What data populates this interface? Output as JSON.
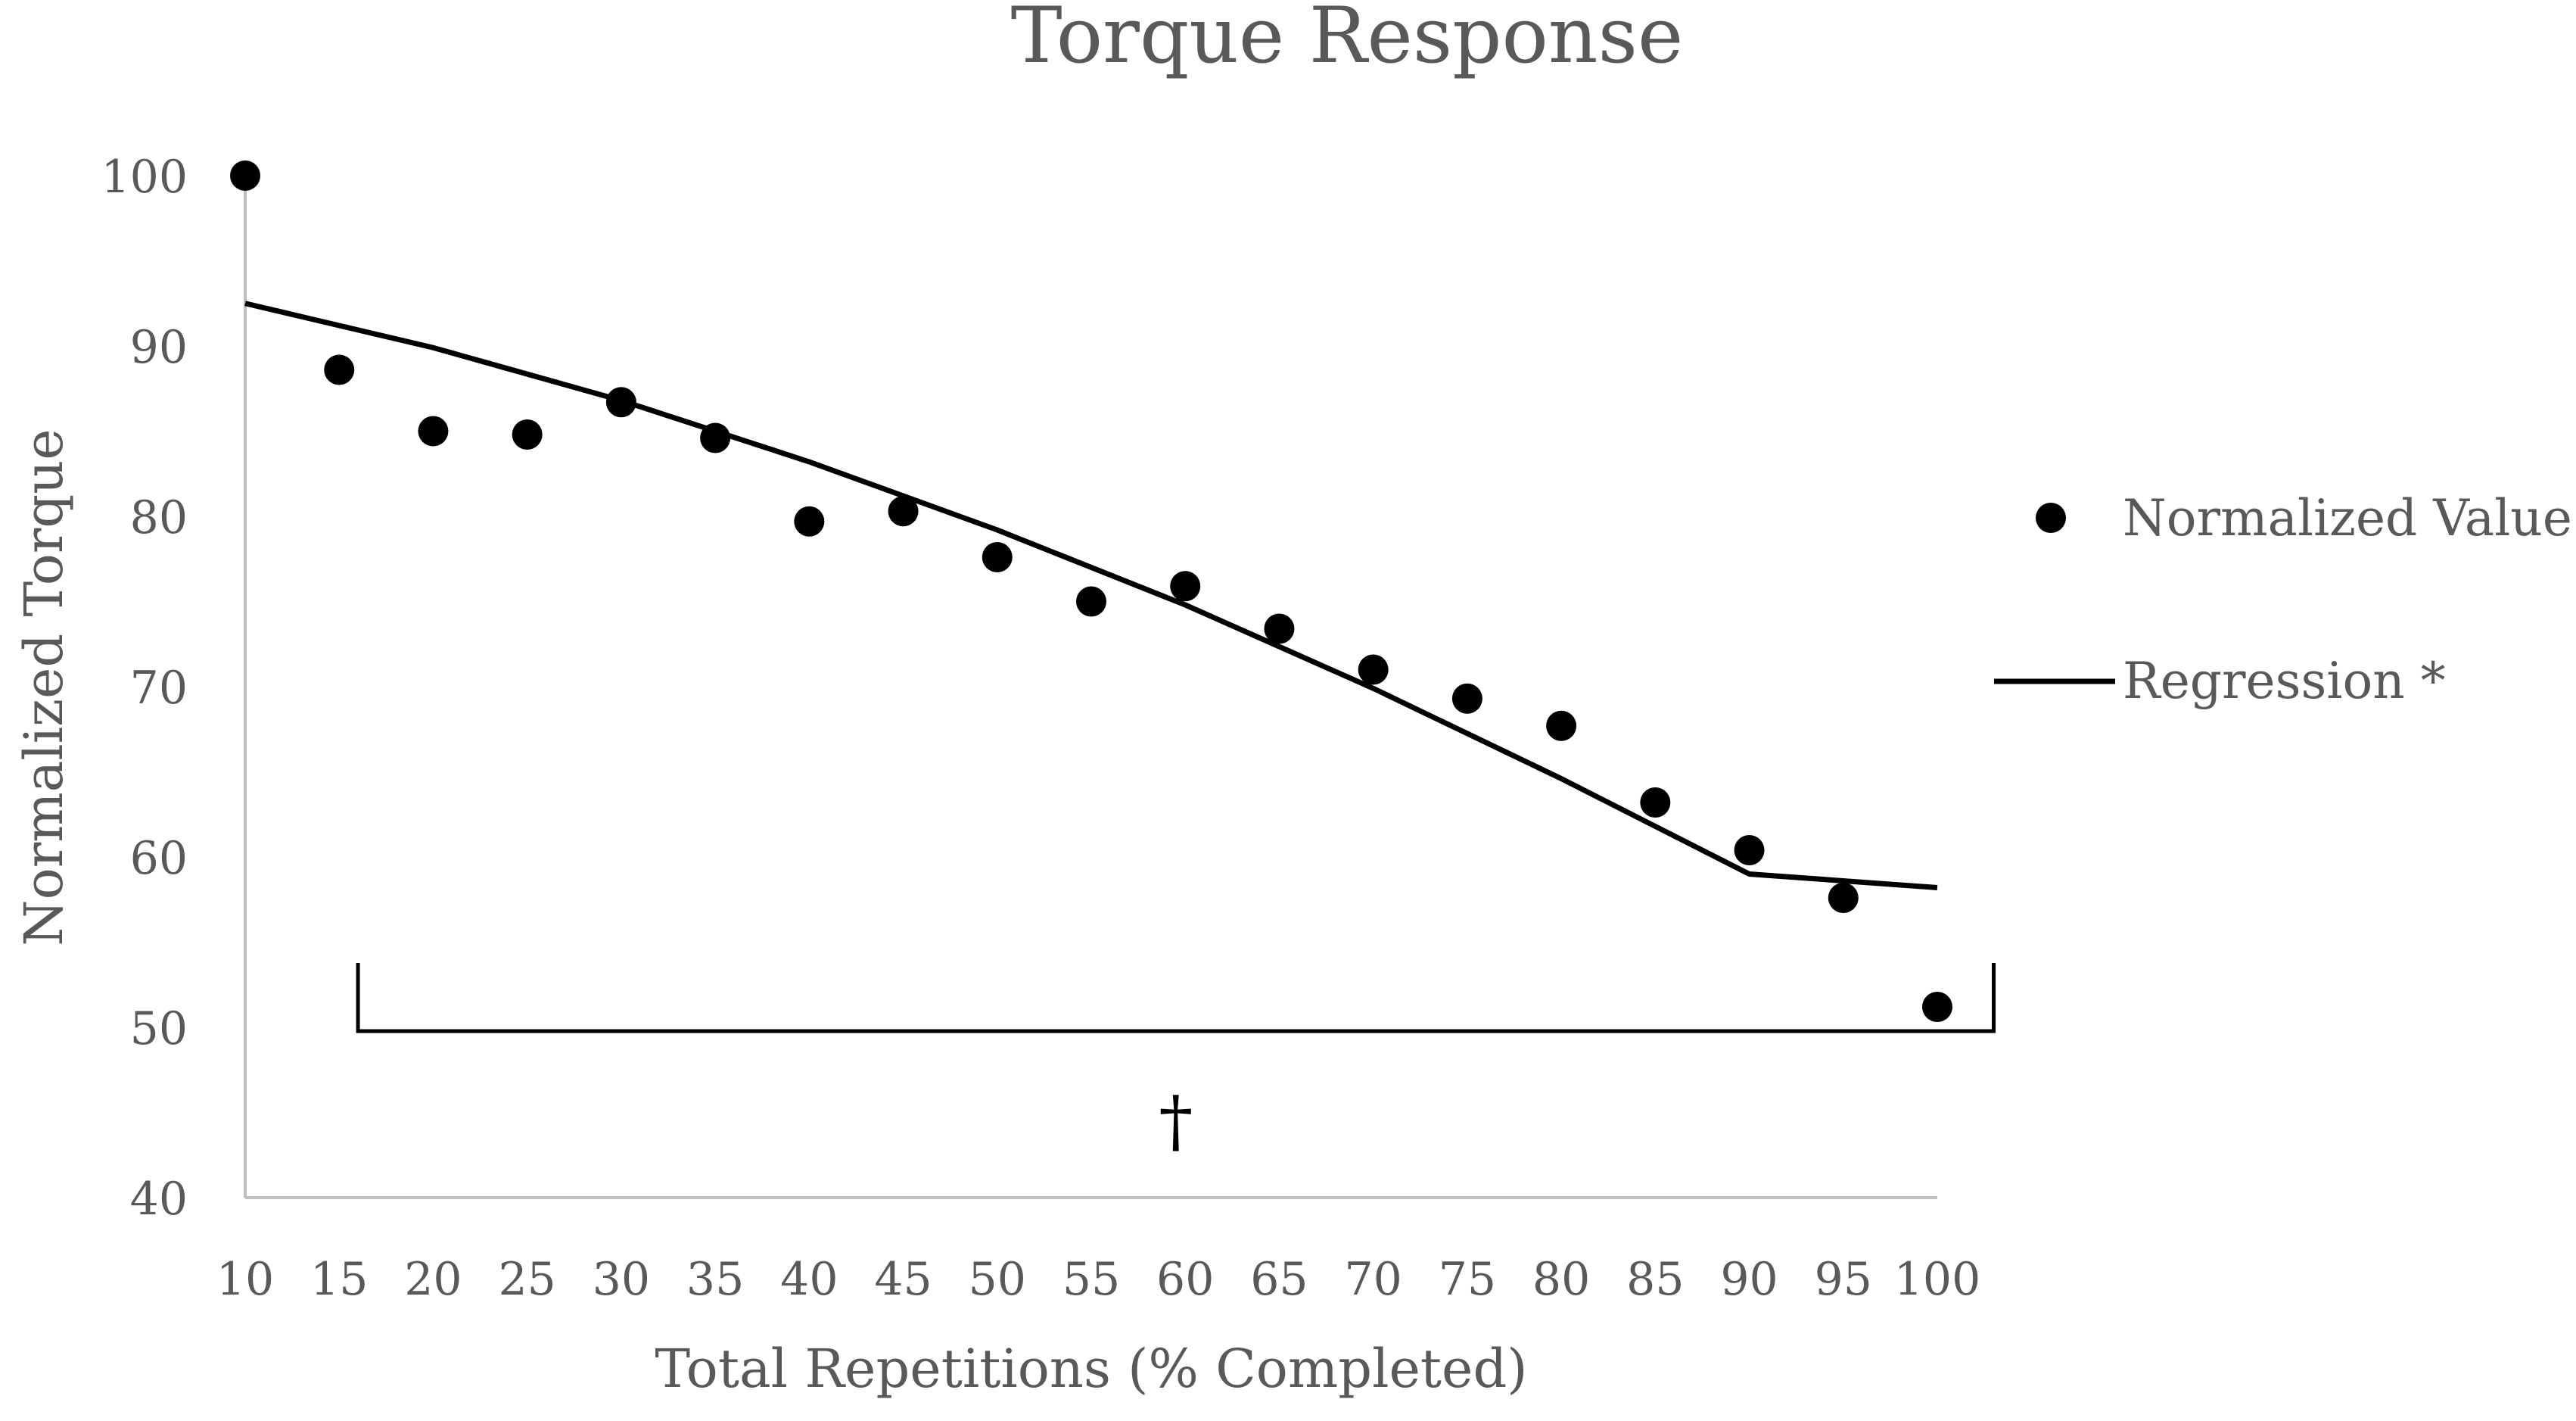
{
  "chart_data": {
    "type": "scatter",
    "title": "Torque Response",
    "xlabel": "Total Repetitions (% Completed)",
    "ylabel": "Normalized Torque",
    "x_ticks": [
      "10",
      "15",
      "20",
      "25",
      "30",
      "35",
      "40",
      "45",
      "50",
      "55",
      "60",
      "65",
      "70",
      "75",
      "80",
      "85",
      "90",
      "95",
      "100"
    ],
    "y_ticks": [
      "40",
      "50",
      "60",
      "70",
      "80",
      "90",
      "100"
    ],
    "xlim": [
      10,
      100
    ],
    "ylim": [
      40,
      100
    ],
    "grid": false,
    "legend_position": "right",
    "series": [
      {
        "name": "Normalized Value",
        "kind": "scatter",
        "color": "#000000",
        "x": [
          10,
          15,
          20,
          25,
          30,
          35,
          40,
          45,
          50,
          55,
          60,
          65,
          70,
          75,
          80,
          85,
          90,
          95,
          100
        ],
        "y": [
          100,
          88.6,
          85.0,
          84.8,
          86.7,
          84.6,
          79.7,
          80.3,
          77.6,
          75.0,
          75.9,
          73.4,
          71.0,
          69.3,
          67.7,
          63.2,
          60.4,
          57.6,
          51.2
        ]
      },
      {
        "name": "Regression *",
        "kind": "line",
        "color": "#000000",
        "x": [
          10,
          20,
          30,
          40,
          50,
          60,
          70,
          80,
          90,
          100
        ],
        "y": [
          92.5,
          89.9,
          86.8,
          83.2,
          79.2,
          74.8,
          69.9,
          64.6,
          59.0,
          58.2
        ]
      }
    ],
    "annotation": {
      "symbol": "†",
      "bracket_x": [
        16,
        103
      ],
      "bracket_y": 50
    }
  }
}
